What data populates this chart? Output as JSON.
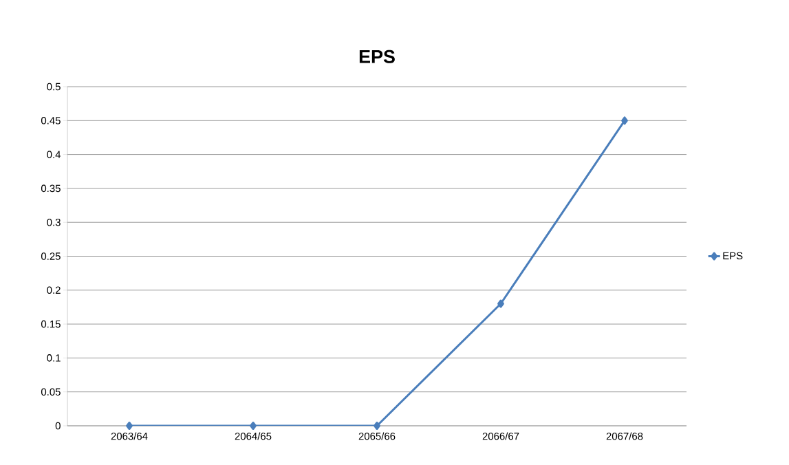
{
  "chart_data": {
    "type": "line",
    "title": "EPS",
    "categories": [
      "2063/64",
      "2064/65",
      "2065/66",
      "2066/67",
      "2067/68"
    ],
    "series": [
      {
        "name": "EPS",
        "color": "#4a7ebb",
        "values": [
          0,
          0,
          0,
          0.18,
          0.45
        ]
      }
    ],
    "ylim": [
      0,
      0.5
    ],
    "yticks": [
      0,
      0.05,
      0.1,
      0.15,
      0.2,
      0.25,
      0.3,
      0.35,
      0.4,
      0.45,
      0.5
    ],
    "grid": "y",
    "legend": "right",
    "marker": "diamond",
    "line_style": "solid"
  }
}
